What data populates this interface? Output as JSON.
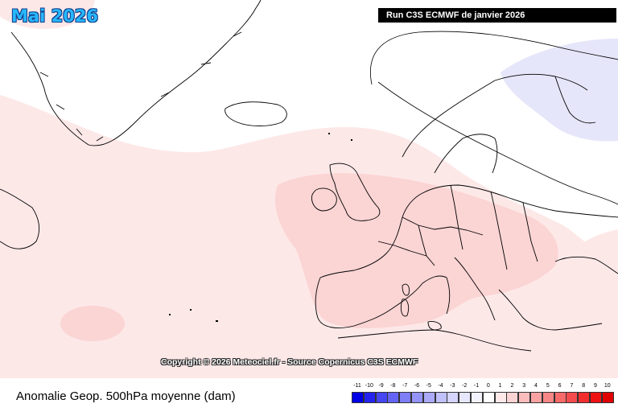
{
  "map": {
    "title": "Mai 2026",
    "run_label": "Run C3S ECMWF de janvier 2026",
    "copyright": "Copyright © 2026 Meteociel.fr - Source Copernicus C3S ECMWF"
  },
  "footer": {
    "field_label": "Anomalie Geop. 500hPa moyenne (dam)"
  },
  "legend": {
    "ticks": [
      "-11",
      "-10",
      "-9",
      "-8",
      "-7",
      "-6",
      "-5",
      "-4",
      "-3",
      "-2",
      "-1",
      "0",
      "1",
      "2",
      "3",
      "4",
      "5",
      "6",
      "7",
      "8",
      "9",
      "10"
    ],
    "colors": [
      "#0000e6",
      "#2424ee",
      "#4646f2",
      "#6464f4",
      "#7e7ef6",
      "#9494f8",
      "#aaaaf9",
      "#c0c0fb",
      "#d4d4fc",
      "#e6e6fd",
      "#f3f3fe",
      "#ffffff",
      "#fee8e8",
      "#fdd4d4",
      "#fcbcbc",
      "#faa2a2",
      "#f88686",
      "#f66a6a",
      "#f44c4c",
      "#f22e2e",
      "#ee1212",
      "#e00000"
    ]
  },
  "anomaly_colors": {
    "weak_positive": "#fde8e8",
    "positive": "#fbd4d4",
    "negative": "#e6e6fa"
  }
}
